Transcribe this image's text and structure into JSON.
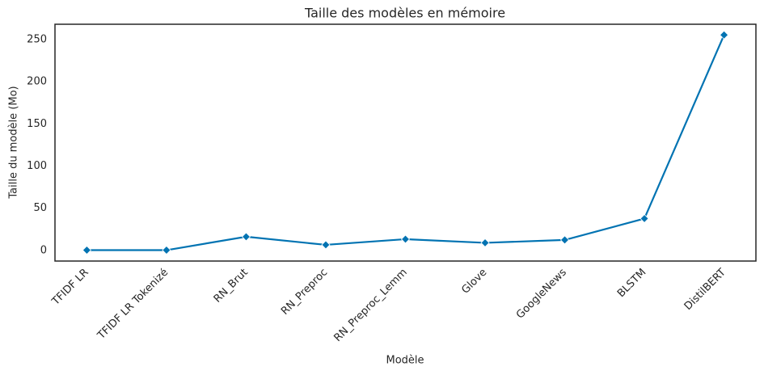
{
  "chart_data": {
    "type": "line",
    "title": "Taille des modèles en mémoire",
    "xlabel": "Modèle",
    "ylabel": "Taille du modèle (Mo)",
    "categories": [
      "TFIDF LR",
      "TFIDF LR Tokenizé",
      "RN_Brut",
      "RN_Preproc",
      "RN_Preproc_Lemm",
      "Glove",
      "GoogleNews",
      "BLSTM",
      "DistilBERT"
    ],
    "series": [
      {
        "values": [
          0.4,
          0.4,
          16.3,
          6.7,
          13.4,
          9.1,
          12.5,
          37.8,
          255.3
        ],
        "color": "#0173b2",
        "marker": "diamond"
      }
    ],
    "ylim": [
      -12.5,
      268
    ],
    "yticks": [
      0,
      50,
      100,
      150,
      200,
      250
    ],
    "grid": false
  }
}
